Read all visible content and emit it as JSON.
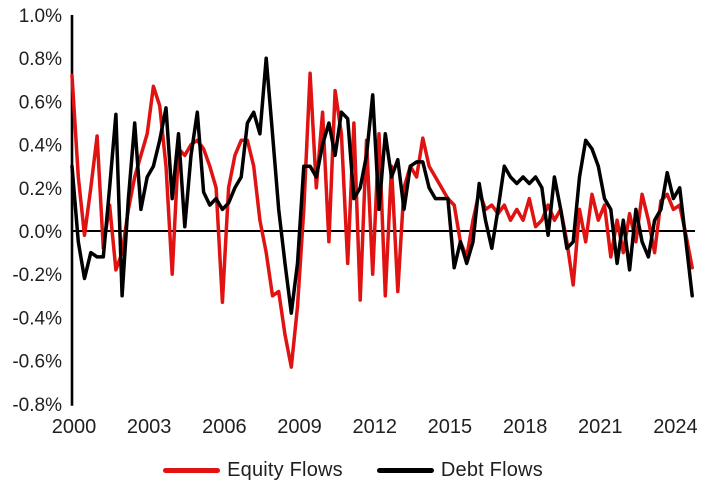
{
  "chart_data": {
    "type": "line",
    "title": "",
    "xlabel": "",
    "ylabel": "",
    "grid": false,
    "legend_position": "bottom-center",
    "x_unit": "quarterly",
    "x_start_year": 2000,
    "x_end_year": 2024,
    "ylim": [
      -0.8,
      1.0
    ],
    "y_ticks": [
      {
        "label": "1.0%",
        "value": 1.0
      },
      {
        "label": "0.8%",
        "value": 0.8
      },
      {
        "label": "0.6%",
        "value": 0.6
      },
      {
        "label": "0.4%",
        "value": 0.4
      },
      {
        "label": "0.2%",
        "value": 0.2
      },
      {
        "label": "0.0%",
        "value": 0.0
      },
      {
        "label": "-0.2%",
        "value": -0.2
      },
      {
        "label": "-0.4%",
        "value": -0.4
      },
      {
        "label": "-0.6%",
        "value": -0.6
      },
      {
        "label": "-0.8%",
        "value": -0.8
      }
    ],
    "x_ticks": [
      {
        "label": "2000",
        "year": 2000
      },
      {
        "label": "2003",
        "year": 2003
      },
      {
        "label": "2006",
        "year": 2006
      },
      {
        "label": "2009",
        "year": 2009
      },
      {
        "label": "2012",
        "year": 2012
      },
      {
        "label": "2015",
        "year": 2015
      },
      {
        "label": "2018",
        "year": 2018
      },
      {
        "label": "2021",
        "year": 2021
      },
      {
        "label": "2024",
        "year": 2024
      }
    ],
    "series": [
      {
        "name": "Equity Flows",
        "color": "#e01212",
        "values": [
          0.72,
          0.25,
          -0.02,
          0.2,
          0.44,
          -0.08,
          0.12,
          -0.18,
          -0.1,
          0.1,
          0.25,
          0.35,
          0.45,
          0.67,
          0.58,
          0.3,
          -0.2,
          0.38,
          0.35,
          0.4,
          0.42,
          0.38,
          0.3,
          0.2,
          -0.33,
          0.2,
          0.35,
          0.42,
          0.42,
          0.3,
          0.05,
          -0.1,
          -0.3,
          -0.28,
          -0.48,
          -0.63,
          -0.35,
          0.1,
          0.73,
          0.2,
          0.55,
          -0.05,
          0.65,
          0.45,
          -0.15,
          0.5,
          -0.32,
          0.42,
          -0.2,
          0.45,
          -0.3,
          0.3,
          -0.28,
          0.2,
          0.3,
          0.25,
          0.43,
          0.3,
          0.25,
          0.2,
          0.15,
          0.12,
          -0.05,
          -0.12,
          0.05,
          0.18,
          0.1,
          0.12,
          0.08,
          0.12,
          0.05,
          0.1,
          0.05,
          0.15,
          0.02,
          0.05,
          0.12,
          0.05,
          0.1,
          -0.05,
          -0.25,
          0.1,
          -0.05,
          0.17,
          0.05,
          0.12,
          -0.12,
          0.05,
          -0.1,
          0.08,
          -0.05,
          0.17,
          0.05,
          -0.1,
          0.14,
          0.17,
          0.1,
          0.12,
          -0.02,
          -0.17
        ]
      },
      {
        "name": "Debt Flows",
        "color": "#000000",
        "values": [
          0.3,
          -0.05,
          -0.22,
          -0.1,
          -0.12,
          -0.12,
          0.2,
          0.54,
          -0.3,
          0.15,
          0.5,
          0.1,
          0.25,
          0.3,
          0.42,
          0.57,
          0.15,
          0.45,
          0.02,
          0.35,
          0.55,
          0.18,
          0.12,
          0.15,
          0.1,
          0.13,
          0.2,
          0.25,
          0.5,
          0.55,
          0.45,
          0.8,
          0.45,
          0.1,
          -0.15,
          -0.38,
          -0.15,
          0.3,
          0.3,
          0.25,
          0.4,
          0.5,
          0.35,
          0.55,
          0.52,
          0.15,
          0.2,
          0.35,
          0.63,
          0.1,
          0.45,
          0.25,
          0.33,
          0.1,
          0.3,
          0.32,
          0.32,
          0.2,
          0.15,
          0.15,
          0.15,
          -0.17,
          -0.05,
          -0.15,
          -0.05,
          0.22,
          0.05,
          -0.08,
          0.1,
          0.3,
          0.25,
          0.22,
          0.25,
          0.22,
          0.25,
          0.2,
          -0.02,
          0.25,
          0.1,
          -0.08,
          -0.05,
          0.25,
          0.42,
          0.38,
          0.3,
          0.15,
          0.1,
          -0.15,
          0.05,
          -0.18,
          0.1,
          -0.05,
          -0.12,
          0.05,
          0.1,
          0.27,
          0.15,
          0.2,
          -0.05,
          -0.3
        ]
      }
    ],
    "zero_line": true,
    "axis_color": "#000000",
    "text_color": "#1f1f1f"
  },
  "legend": {
    "items": [
      {
        "label": "Equity Flows",
        "color": "#e01212"
      },
      {
        "label": "Debt Flows",
        "color": "#000000"
      }
    ]
  }
}
